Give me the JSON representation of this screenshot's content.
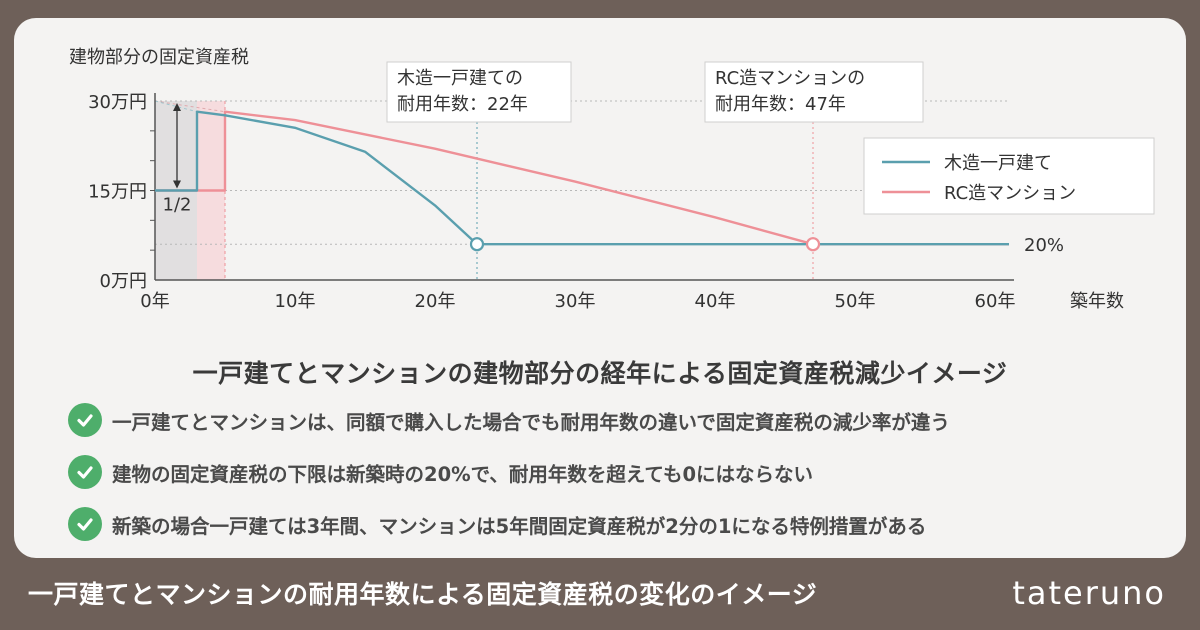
{
  "chart_data": {
    "type": "line",
    "ylabel": "建物部分の固定資産税",
    "xlabel": "築年数",
    "x_ticks": [
      0,
      10,
      20,
      30,
      40,
      50,
      60
    ],
    "x_tick_labels": [
      "0年",
      "10年",
      "20年",
      "30年",
      "40年",
      "50年",
      "60年"
    ],
    "y_ticks": [
      0,
      15,
      30
    ],
    "y_tick_labels": [
      "0万円",
      "15万円",
      "30万円"
    ],
    "xlim": [
      0,
      61
    ],
    "ylim": [
      0,
      30
    ],
    "series": [
      {
        "name": "木造一戸建て",
        "color": "#5a9fae",
        "points": [
          [
            0,
            15
          ],
          [
            3,
            15
          ],
          [
            3,
            28.2
          ],
          [
            5,
            27.6
          ],
          [
            10,
            25.5
          ],
          [
            15,
            21.5
          ],
          [
            20,
            12.5
          ],
          [
            23,
            6
          ],
          [
            61,
            6
          ]
        ]
      },
      {
        "name": "RC造マンション",
        "color": "#ee9097",
        "points": [
          [
            0,
            15
          ],
          [
            5,
            15
          ],
          [
            5,
            28.2
          ],
          [
            10,
            26.8
          ],
          [
            20,
            22
          ],
          [
            30,
            16.5
          ],
          [
            40,
            10.5
          ],
          [
            47,
            6
          ],
          [
            61,
            6
          ]
        ]
      }
    ],
    "annotations": {
      "wood_life_line1": "木造一戸建ての",
      "wood_life_line2": "耐用年数：22年",
      "wood_life_x": 23,
      "rc_life_line1": "RC造マンションの",
      "rc_life_line2": "耐用年数：47年",
      "rc_life_x": 47,
      "floor_label": "20%",
      "floor_value": 6,
      "half_label": "1/2",
      "wood_special_years": 3,
      "rc_special_years": 5
    },
    "legend_position": "top-right",
    "grid": "dotted"
  },
  "caption": "一戸建てとマンションの建物部分の経年による固定資産税減少イメージ",
  "points": [
    "一戸建てとマンションは、同額で購入した場合でも耐用年数の違いで固定資産税の減少率が違う",
    "建物の固定資産税の下限は新築時の20%で、耐用年数を超えても0にはならない",
    "新築の場合一戸建ては3年間、マンションは5年間固定資産税が2分の1になる特例措置がある"
  ],
  "footer": {
    "title": "一戸建てとマンションの耐用年数による固定資産税の変化のイメージ",
    "brand": "tateruno"
  },
  "colors": {
    "check": "#4eae6b",
    "background": "#6e6059",
    "card": "#f4f3f2"
  }
}
